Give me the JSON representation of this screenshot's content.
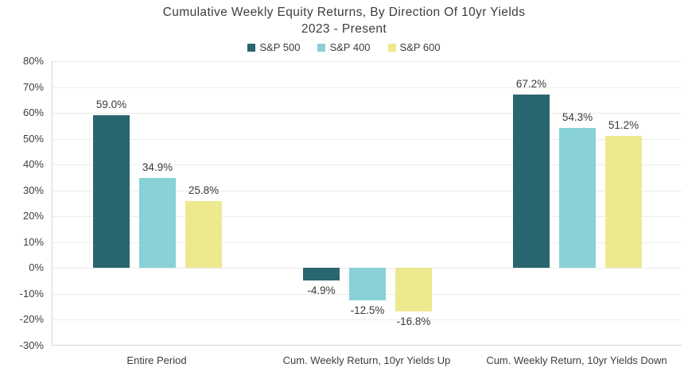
{
  "title": {
    "line1": "Cumulative Weekly Equity Returns, By Direction Of 10yr Yields",
    "line2": "2023 - Present"
  },
  "chart_data": {
    "type": "bar",
    "title": "Cumulative Weekly Equity Returns, By Direction Of 10yr Yields",
    "subtitle": "2023 - Present",
    "categories": [
      "Entire Period",
      "Cum. Weekly Return, 10yr Yields Up",
      "Cum. Weekly Return, 10yr Yields Down"
    ],
    "series": [
      {
        "name": "S&P 500",
        "color": "#2a666f",
        "values": [
          59.0,
          -4.9,
          67.2
        ],
        "labels": [
          "59.0%",
          "-4.9%",
          "67.2%"
        ]
      },
      {
        "name": "S&P 400",
        "color": "#87d1d7",
        "values": [
          34.9,
          -12.5,
          54.3
        ],
        "labels": [
          "34.9%",
          "-12.5%",
          "54.3%"
        ]
      },
      {
        "name": "S&P 600",
        "color": "#ede98f",
        "values": [
          25.8,
          -16.8,
          51.2
        ],
        "labels": [
          "25.8%",
          "-16.8%",
          "51.2%"
        ]
      }
    ],
    "ylim": [
      -30,
      80
    ],
    "ytick_step": 10,
    "ytick_labels": [
      "80%",
      "70%",
      "60%",
      "50%",
      "40%",
      "30%",
      "20%",
      "10%",
      "0%",
      "-10%",
      "-20%",
      "-30%"
    ],
    "grid": true,
    "legend_position": "top",
    "xlabel": "",
    "ylabel": ""
  },
  "colors": {
    "sp500": "#2a666f",
    "sp400": "#87d1d7",
    "sp600": "#ede98f",
    "gridline": "#ececec",
    "axis_line": "#d6d6d6",
    "text": "#3d3d3d"
  }
}
